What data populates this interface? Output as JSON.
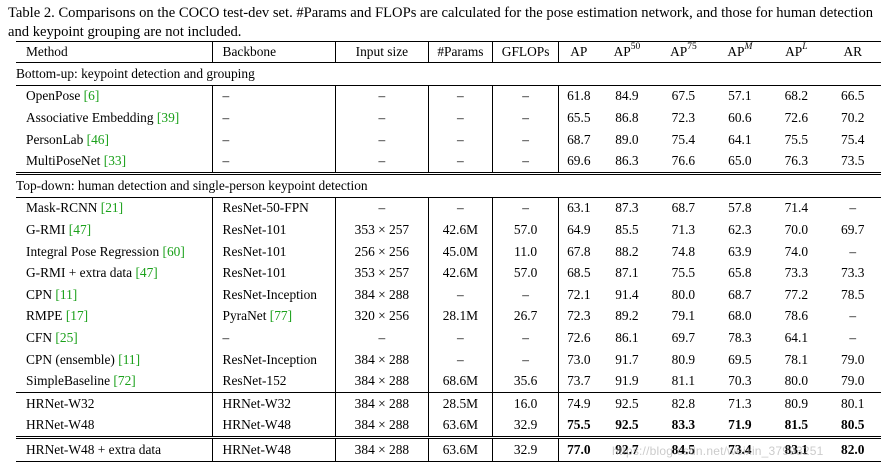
{
  "caption": "Table 2. Comparisons on the COCO test-dev set. #Params and FLOPs are calculated for the pose estimation network, and those for human detection and keypoint grouping are not included.",
  "headers": {
    "method": "Method",
    "backbone": "Backbone",
    "input_size": "Input size",
    "params": "#Params",
    "gflops": "GFLOPs",
    "ap": "AP",
    "ap_prefix": "AP",
    "ap50_sup": "50",
    "ap75_sup": "75",
    "apm_sup": "M",
    "apl_sup": "L",
    "ar": "AR"
  },
  "sections": {
    "bottom_up": "Bottom-up: keypoint detection and grouping",
    "top_down": "Top-down: human detection and single-person keypoint detection"
  },
  "bottom_up_rows": [
    {
      "method": "OpenPose",
      "cite": "[6]",
      "backbone": "–",
      "input": "–",
      "params": "–",
      "gflops": "–",
      "ap": "61.8",
      "ap50": "84.9",
      "ap75": "67.5",
      "apm": "57.1",
      "apl": "68.2",
      "ar": "66.5"
    },
    {
      "method": "Associative Embedding",
      "cite": "[39]",
      "backbone": "–",
      "input": "–",
      "params": "–",
      "gflops": "–",
      "ap": "65.5",
      "ap50": "86.8",
      "ap75": "72.3",
      "apm": "60.6",
      "apl": "72.6",
      "ar": "70.2"
    },
    {
      "method": "PersonLab",
      "cite": "[46]",
      "backbone": "–",
      "input": "–",
      "params": "–",
      "gflops": "–",
      "ap": "68.7",
      "ap50": "89.0",
      "ap75": "75.4",
      "apm": "64.1",
      "apl": "75.5",
      "ar": "75.4"
    },
    {
      "method": "MultiPoseNet",
      "cite": "[33]",
      "backbone": "–",
      "input": "–",
      "params": "–",
      "gflops": "–",
      "ap": "69.6",
      "ap50": "86.3",
      "ap75": "76.6",
      "apm": "65.0",
      "apl": "76.3",
      "ar": "73.5"
    }
  ],
  "top_down_rows": [
    {
      "method": "Mask-RCNN",
      "cite": "[21]",
      "backbone": "ResNet-50-FPN",
      "backbone_cite": "",
      "input": "–",
      "params": "–",
      "gflops": "–",
      "ap": "63.1",
      "ap50": "87.3",
      "ap75": "68.7",
      "apm": "57.8",
      "apl": "71.4",
      "ar": "–"
    },
    {
      "method": "G-RMI",
      "cite": "[47]",
      "backbone": "ResNet-101",
      "backbone_cite": "",
      "input": "353 × 257",
      "params": "42.6M",
      "gflops": "57.0",
      "ap": "64.9",
      "ap50": "85.5",
      "ap75": "71.3",
      "apm": "62.3",
      "apl": "70.0",
      "ar": "69.7"
    },
    {
      "method": "Integral Pose Regression",
      "cite": "[60]",
      "backbone": "ResNet-101",
      "backbone_cite": "",
      "input": "256 × 256",
      "params": "45.0M",
      "gflops": "11.0",
      "ap": "67.8",
      "ap50": "88.2",
      "ap75": "74.8",
      "apm": "63.9",
      "apl": "74.0",
      "ar": "–"
    },
    {
      "method": "G-RMI + extra data",
      "cite": "[47]",
      "backbone": "ResNet-101",
      "backbone_cite": "",
      "input": "353 × 257",
      "params": "42.6M",
      "gflops": "57.0",
      "ap": "68.5",
      "ap50": "87.1",
      "ap75": "75.5",
      "apm": "65.8",
      "apl": "73.3",
      "ar": "73.3"
    },
    {
      "method": "CPN",
      "cite": "[11]",
      "backbone": "ResNet-Inception",
      "backbone_cite": "",
      "input": "384 × 288",
      "params": "–",
      "gflops": "–",
      "ap": "72.1",
      "ap50": "91.4",
      "ap75": "80.0",
      "apm": "68.7",
      "apl": "77.2",
      "ar": "78.5"
    },
    {
      "method": "RMPE",
      "cite": "[17]",
      "backbone": "PyraNet",
      "backbone_cite": "[77]",
      "input": "320 × 256",
      "params": "28.1M",
      "gflops": "26.7",
      "ap": "72.3",
      "ap50": "89.2",
      "ap75": "79.1",
      "apm": "68.0",
      "apl": "78.6",
      "ar": "–"
    },
    {
      "method": "CFN",
      "cite": "[25]",
      "backbone": "–",
      "backbone_cite": "",
      "input": "–",
      "params": "–",
      "gflops": "–",
      "ap": "72.6",
      "ap50": "86.1",
      "ap75": "69.7",
      "apm": "78.3",
      "apl": "64.1",
      "ar": "–"
    },
    {
      "method": "CPN (ensemble)",
      "cite": "[11]",
      "backbone": "ResNet-Inception",
      "backbone_cite": "",
      "input": "384 × 288",
      "params": "–",
      "gflops": "–",
      "ap": "73.0",
      "ap50": "91.7",
      "ap75": "80.9",
      "apm": "69.5",
      "apl": "78.1",
      "ar": "79.0"
    },
    {
      "method": "SimpleBaseline",
      "cite": "[72]",
      "backbone": "ResNet-152",
      "backbone_cite": "",
      "input": "384 × 288",
      "params": "68.6M",
      "gflops": "35.6",
      "ap": "73.7",
      "ap50": "91.9",
      "ap75": "81.1",
      "apm": "70.3",
      "apl": "80.0",
      "ar": "79.0"
    }
  ],
  "hrnet_rows": [
    {
      "method": "HRNet-W32",
      "backbone": "HRNet-W32",
      "input": "384 × 288",
      "params": "28.5M",
      "gflops": "16.0",
      "ap": "74.9",
      "ap50": "92.5",
      "ap75": "82.8",
      "apm": "71.3",
      "apl": "80.9",
      "ar": "80.1",
      "bold": false
    },
    {
      "method": "HRNet-W48",
      "backbone": "HRNet-W48",
      "input": "384 × 288",
      "params": "63.6M",
      "gflops": "32.9",
      "ap": "75.5",
      "ap50": "92.5",
      "ap75": "83.3",
      "apm": "71.9",
      "apl": "81.5",
      "ar": "80.5",
      "bold": true
    }
  ],
  "extra_row": {
    "method": "HRNet-W48 + extra data",
    "backbone": "HRNet-W48",
    "input": "384 × 288",
    "params": "63.6M",
    "gflops": "32.9",
    "ap": "77.0",
    "ap50": "92.7",
    "ap75": "84.5",
    "apm": "73.4",
    "apl": "83.1",
    "ar": "82.0"
  },
  "watermark": "https://blog.csdn.net/weixin_37993251"
}
